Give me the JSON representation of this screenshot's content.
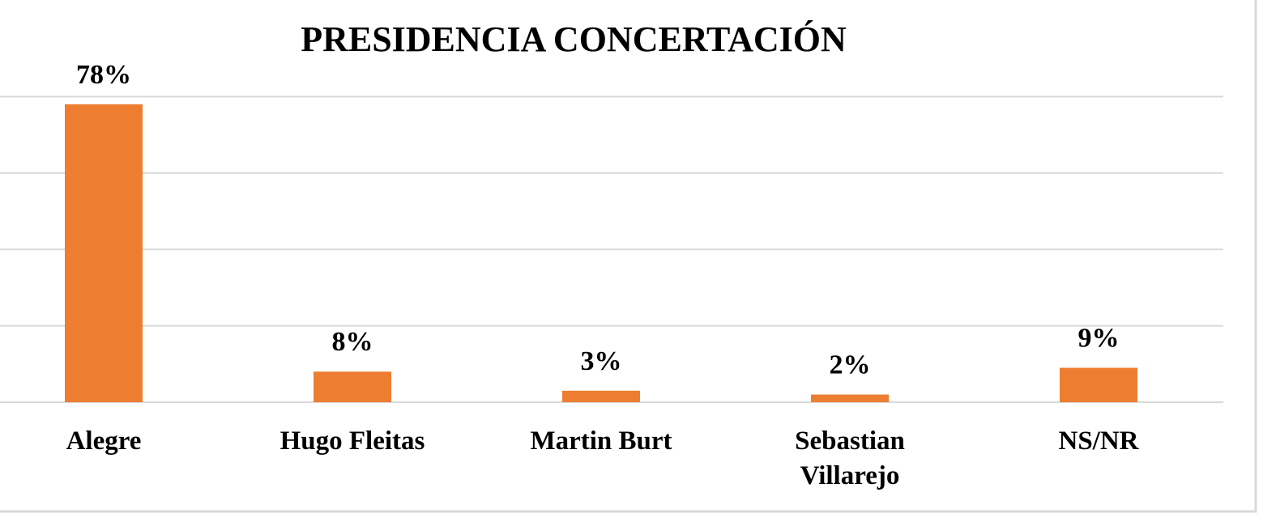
{
  "chart_data": {
    "type": "bar",
    "title": "PRESIDENCIA CONCERTACIÓN",
    "categories": [
      "Alegre",
      "Hugo Fleitas",
      "Martin Burt",
      "Sebastian Villarejo",
      "NS/NR"
    ],
    "values": [
      78,
      8,
      3,
      2,
      9
    ],
    "data_labels": [
      "78%",
      "8%",
      "3%",
      "2%",
      "9%"
    ],
    "xlabel": "",
    "ylabel": "",
    "ylim": [
      0,
      85
    ],
    "gridlines": [
      0,
      20,
      40,
      60,
      80
    ],
    "grid": true,
    "legend": "none",
    "bar_color": "#ed7d31"
  }
}
